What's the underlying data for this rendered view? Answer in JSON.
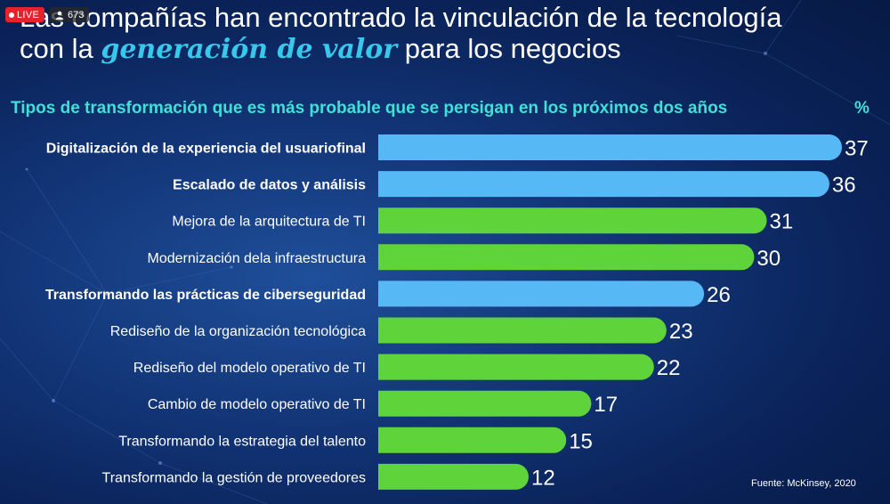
{
  "stream": {
    "live_label": "LIVE",
    "viewer_count": "673"
  },
  "headline": {
    "line1": "Las compañías han encontrado la vinculación de la tecnología",
    "line2_prefix": "con la ",
    "line2_highlight": "generación de valor",
    "line2_suffix": " para los negocios"
  },
  "source": "Fuente: McKinsey, 2020",
  "colors": {
    "blue": "#56b9f5",
    "green": "#5fd43a",
    "subtitle": "#3fe0d8"
  },
  "chart_data": {
    "type": "bar",
    "orientation": "horizontal",
    "title": "Tipos de transformación que es más probable que se persigan en los próximos dos años",
    "unit_label": "%",
    "categories": [
      "Digitalización de la experiencia del usuariofinal",
      "Escalado de datos y análisis",
      "Mejora de la arquitectura de TI",
      "Modernización dela infraestructura",
      "Transformando las prácticas de ciberseguridad",
      "Rediseño de la organización tecnológica",
      "Rediseño del modelo operativo de TI",
      "Cambio de modelo operativo de TI",
      "Transformando la estrategia del talento",
      "Transformando la gestión de proveedores"
    ],
    "values": [
      37,
      36,
      31,
      30,
      26,
      23,
      22,
      17,
      15,
      12
    ],
    "colors": [
      "blue",
      "blue",
      "green",
      "green",
      "blue",
      "green",
      "green",
      "green",
      "green",
      "green"
    ],
    "label_bold": [
      true,
      true,
      false,
      false,
      true,
      false,
      false,
      false,
      false,
      false
    ],
    "xlim": [
      0,
      37
    ],
    "grid": false,
    "legend": "none"
  }
}
